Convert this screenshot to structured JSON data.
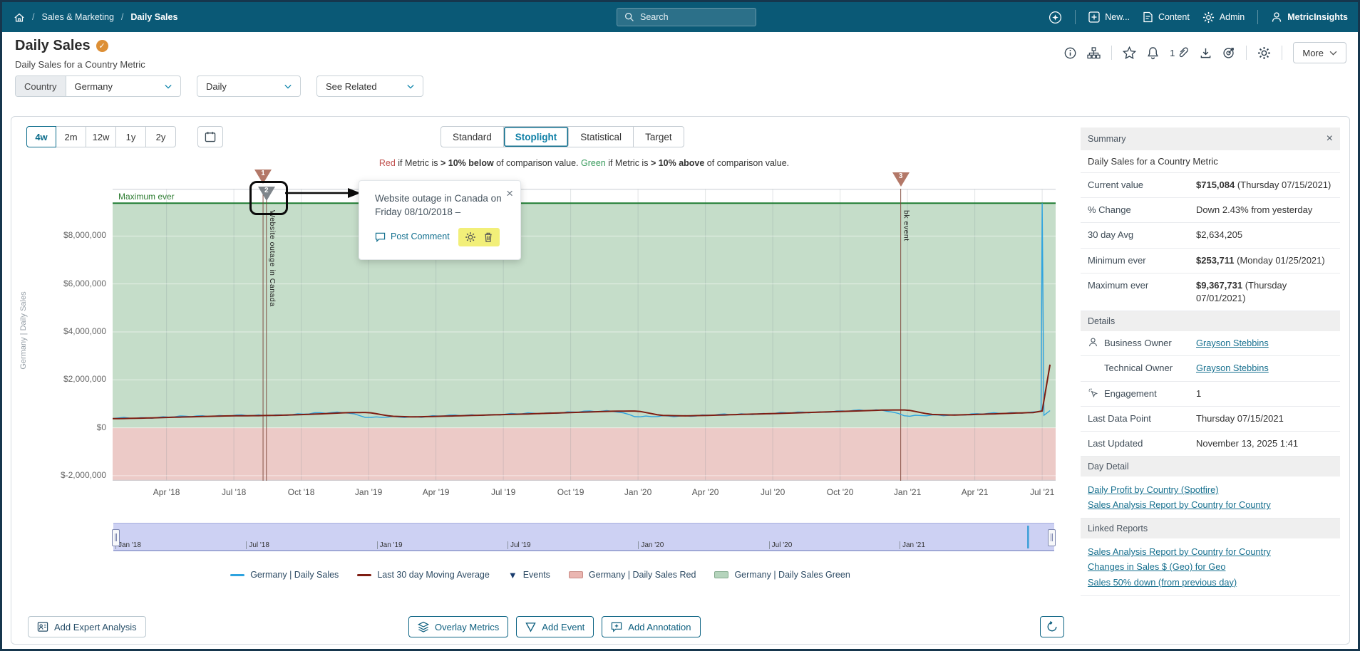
{
  "header": {
    "breadcrumb": {
      "home": "home",
      "items": [
        "Sales & Marketing",
        "Daily Sales"
      ]
    },
    "search_placeholder": "Search",
    "nav": {
      "new_label": "New...",
      "content_label": "Content",
      "admin_label": "Admin",
      "user_label": "MetricInsights"
    }
  },
  "page": {
    "title": "Daily Sales",
    "subtitle": "Daily Sales for a Country Metric",
    "attachment_count": "1",
    "more_label": "More"
  },
  "filters": {
    "country_label": "Country",
    "country_value": "Germany",
    "frequency_value": "Daily",
    "related_value": "See Related"
  },
  "toolbar": {
    "ranges": [
      "4w",
      "2m",
      "12w",
      "1y",
      "2y"
    ],
    "active_range": "4w",
    "tabs": [
      "Standard",
      "Stoplight",
      "Statistical",
      "Target"
    ],
    "active_tab": "Stoplight"
  },
  "stoplight_note": {
    "segments": [
      {
        "t": "Red",
        "c": "#c0504d"
      },
      {
        "t": " if Metric is "
      },
      {
        "t": "> 10% below",
        "b": true
      },
      {
        "t": " of comparison value. "
      },
      {
        "t": "Green",
        "c": "#379a5b"
      },
      {
        "t": " if Metric is "
      },
      {
        "t": "> 10% above",
        "b": true
      },
      {
        "t": " of comparison value."
      }
    ]
  },
  "tooltip": {
    "text": "Website outage in Canada on Friday 08/10/2018 –",
    "close": "×",
    "post_comment": "Post Comment"
  },
  "chart_data": {
    "type": "line",
    "title": "Germany | Daily Sales (Stoplight view)",
    "y_axis_title": "Germany | Daily Sales",
    "max_ever_label": "Maximum ever",
    "x_start": "Jan 2018",
    "x_end": "Jul 2021",
    "y_ticks": [
      {
        "label": "$8,000,000",
        "value": 8000000
      },
      {
        "label": "$6,000,000",
        "value": 6000000
      },
      {
        "label": "$4,000,000",
        "value": 4000000
      },
      {
        "label": "$2,000,000",
        "value": 2000000
      },
      {
        "label": "$0",
        "value": 0
      },
      {
        "label": "$-2,000,000",
        "value": -2000000
      }
    ],
    "x_ticks": [
      {
        "label": "Apr '18",
        "month": 3
      },
      {
        "label": "Jul '18",
        "month": 6
      },
      {
        "label": "Oct '18",
        "month": 9
      },
      {
        "label": "Jan '19",
        "month": 12
      },
      {
        "label": "Apr '19",
        "month": 15
      },
      {
        "label": "Jul '19",
        "month": 18
      },
      {
        "label": "Oct '19",
        "month": 21
      },
      {
        "label": "Jan '20",
        "month": 24
      },
      {
        "label": "Apr '20",
        "month": 27
      },
      {
        "label": "Jul '20",
        "month": 30
      },
      {
        "label": "Oct '20",
        "month": 33
      },
      {
        "label": "Jan '21",
        "month": 36
      },
      {
        "label": "Apr '21",
        "month": 39
      },
      {
        "label": "Jul '21",
        "month": 42
      }
    ],
    "series": [
      {
        "name": "Germany | Daily Sales",
        "color": "#2ea3df",
        "monthly_values": [
          380000,
          400000,
          420000,
          450000,
          470000,
          500000,
          520000,
          500000,
          540000,
          570000,
          610000,
          660000,
          420000,
          440000,
          460000,
          490000,
          510000,
          540000,
          560000,
          590000,
          620000,
          650000,
          680000,
          710000,
          450000,
          470000,
          500000,
          520000,
          550000,
          580000,
          600000,
          630000,
          660000,
          690000,
          720000,
          750000,
          480000,
          510000,
          540000,
          570000,
          600000,
          640000,
          660000
        ]
      },
      {
        "name": "Last 30 day Moving Average",
        "color": "#7e1d12",
        "monthly_values": [
          370000,
          385000,
          405000,
          430000,
          455000,
          480000,
          500000,
          505000,
          520000,
          550000,
          585000,
          630000,
          640000,
          480000,
          455000,
          475000,
          500000,
          525000,
          550000,
          575000,
          605000,
          635000,
          665000,
          695000,
          700000,
          520000,
          495000,
          515000,
          540000,
          570000,
          590000,
          620000,
          650000,
          680000,
          710000,
          740000,
          745000,
          560000,
          530000,
          555000,
          585000,
          620000,
          645000
        ]
      }
    ],
    "spike": {
      "date": "07/01/2021",
      "value": 9367731
    },
    "last_point": {
      "date": "07/15/2021",
      "value": 715084
    },
    "moving_avg_end": 2634205,
    "max_ever_line": {
      "value": 9367731,
      "color": "#1d7c31"
    },
    "bands": [
      {
        "name": "Germany | Daily Sales Green",
        "from": 0,
        "to": 9367731,
        "color": "#c5ddc9"
      },
      {
        "name": "Germany | Daily Sales Red",
        "from": -2210000,
        "to": 0,
        "color": "#eccac7"
      }
    ],
    "events": [
      {
        "n": "1",
        "month": 7.3,
        "label": "",
        "color": "#b37868"
      },
      {
        "n": "2",
        "month": 7.45,
        "label": "Website outage in Canada",
        "color": "#7f858b"
      },
      {
        "n": "3",
        "month": 35.7,
        "label": "bk event",
        "color": "#b37868"
      }
    ],
    "navigator_labels": [
      {
        "label": "Jan '18",
        "month": 0
      },
      {
        "label": "Jul '18",
        "month": 6
      },
      {
        "label": "Jan '19",
        "month": 12
      },
      {
        "label": "Jul '19",
        "month": 18
      },
      {
        "label": "Jan '20",
        "month": 24
      },
      {
        "label": "Jul '20",
        "month": 30
      },
      {
        "label": "Jan '21",
        "month": 36
      }
    ]
  },
  "legend": {
    "items": [
      {
        "swatch": "line",
        "color": "#2ea3df",
        "label": "Germany | Daily Sales"
      },
      {
        "swatch": "line",
        "color": "#7e1d12",
        "label": "Last 30 day Moving Average"
      },
      {
        "swatch": "triangle",
        "color": "#1a3c6e",
        "label": "Events"
      },
      {
        "swatch": "band",
        "color": "#eab6b1",
        "border": "#c98b85",
        "label": "Germany | Daily Sales Red"
      },
      {
        "swatch": "band",
        "color": "#b5d4bc",
        "border": "#84ab8e",
        "label": "Germany | Daily Sales Green"
      }
    ]
  },
  "summary": {
    "title": "Summary",
    "metric_name": "Daily Sales for a Country Metric",
    "stats": [
      {
        "label": "Current value",
        "bold": "$715,084",
        "rest": " (Thursday 07/15/2021)"
      },
      {
        "label": "% Change",
        "bold": "",
        "rest": "Down 2.43% from yesterday"
      },
      {
        "label": "30 day Avg",
        "bold": "",
        "rest": "$2,634,205"
      },
      {
        "label": "Minimum ever",
        "bold": "$253,711",
        "rest": " (Monday 01/25/2021)"
      },
      {
        "label": "Maximum ever",
        "bold": "$9,367,731",
        "rest": " (Thursday 07/01/2021)"
      }
    ],
    "details_title": "Details",
    "details": [
      {
        "icon": "person-icon",
        "label": "Business Owner",
        "value": "Grayson Stebbins",
        "link": true
      },
      {
        "icon": "",
        "label": "Technical Owner",
        "value": "Grayson Stebbins",
        "link": true,
        "indent": true
      },
      {
        "icon": "engagement-icon",
        "label": "Engagement",
        "value": "1",
        "link": false
      },
      {
        "icon": null,
        "label": "Last Data Point",
        "value": "Thursday 07/15/2021",
        "link": false
      },
      {
        "icon": null,
        "label": "Last Updated",
        "value": "November 13, 2025 1:41",
        "link": false
      }
    ],
    "day_detail_title": "Day Detail",
    "day_detail_links": [
      "Daily Profit by Country (Spotfire)",
      "Sales Analysis Report by Country for Country"
    ],
    "linked_reports_title": "Linked Reports",
    "linked_reports_links": [
      "Sales Analysis Report by Country for Country",
      "Changes in Sales $ (Geo) for Geo",
      "Sales 50% down (from previous day)"
    ]
  },
  "actions": {
    "expert": "Add Expert Analysis",
    "overlay": "Overlay Metrics",
    "add_event": "Add Event",
    "add_annotation": "Add Annotation"
  }
}
